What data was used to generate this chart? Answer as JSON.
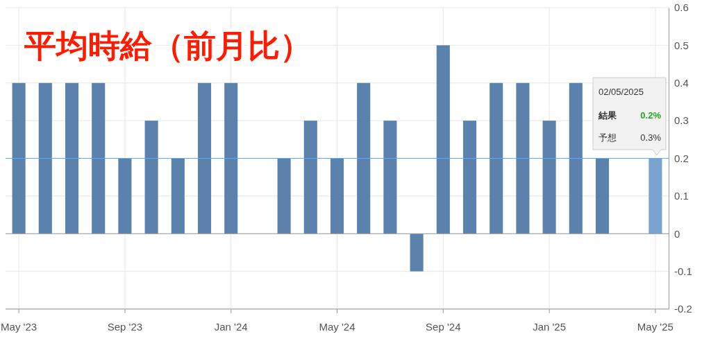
{
  "chart_data": {
    "type": "bar",
    "title": "平均時給（前月比）",
    "categories": [
      "May '23",
      null,
      null,
      null,
      "Sep '23",
      null,
      null,
      null,
      "Jan '24",
      null,
      null,
      null,
      "May '24",
      null,
      null,
      null,
      "Sep '24",
      null,
      null,
      null,
      "Jan '25",
      null,
      null,
      null,
      "May '25"
    ],
    "values": [
      0.4,
      0.4,
      0.4,
      0.4,
      0.2,
      0.3,
      0.2,
      0.4,
      0.4,
      null,
      0.2,
      0.3,
      0.2,
      0.4,
      0.3,
      -0.1,
      0.5,
      0.3,
      0.4,
      0.4,
      0.3,
      0.4,
      0.2,
      null,
      0.2
    ],
    "colors": [
      "#5b82ad",
      "#5b82ad",
      "#5b82ad",
      "#5b82ad",
      "#5b82ad",
      "#5b82ad",
      "#5b82ad",
      "#5b82ad",
      "#5b82ad",
      null,
      "#5b82ad",
      "#5b82ad",
      "#5b82ad",
      "#5b82ad",
      "#5b82ad",
      "#5b82ad",
      "#5b82ad",
      "#5b82ad",
      "#5b82ad",
      "#5b82ad",
      "#5b82ad",
      "#5b82ad",
      "#5b82ad",
      null,
      "#7aa3cd"
    ],
    "ylim": [
      -0.2,
      0.6
    ],
    "yticks": [
      -0.2,
      -0.1,
      0,
      0.1,
      0.2,
      0.3,
      0.4,
      0.5,
      0.6
    ],
    "grid": true,
    "ref_lines": [
      {
        "axis": "y",
        "value": 0.2,
        "color": "#5aaef0"
      }
    ],
    "annotations": [
      "02/05/2025",
      "結果",
      "0.2%",
      "予想",
      "0.3%"
    ]
  }
}
